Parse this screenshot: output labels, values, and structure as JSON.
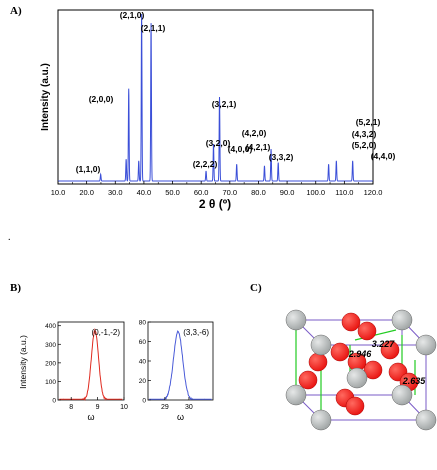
{
  "labels": {
    "a": "A)",
    "b": "B)",
    "c": "C)"
  },
  "stray_mark": ".",
  "chart_data": [
    {
      "type": "line",
      "panel": "A",
      "xlabel": "2 θ (º)",
      "ylabel": "Intensity (a.u.)",
      "xlim": [
        10.0,
        120.0
      ],
      "x_ticks": [
        "10.0",
        "20.0",
        "30.0",
        "40.0",
        "50.0",
        "60.0",
        "70.0",
        "80.0",
        "90.0",
        "100.0",
        "110.0",
        "120.0"
      ],
      "series": [
        {
          "peaks": [
            {
              "x": 24.9,
              "y": 4
            },
            {
              "x": 33.8,
              "y": 13
            },
            {
              "x": 34.7,
              "y": 55
            },
            {
              "x": 38.2,
              "y": 12
            },
            {
              "x": 39.2,
              "y": 100
            },
            {
              "x": 42.5,
              "y": 94
            },
            {
              "x": 61.7,
              "y": 6
            },
            {
              "x": 64.3,
              "y": 22
            },
            {
              "x": 66.4,
              "y": 50
            },
            {
              "x": 72.4,
              "y": 10
            },
            {
              "x": 82.1,
              "y": 9
            },
            {
              "x": 84.4,
              "y": 19
            },
            {
              "x": 86.9,
              "y": 11
            },
            {
              "x": 104.5,
              "y": 10
            },
            {
              "x": 107.2,
              "y": 12
            },
            {
              "x": 112.9,
              "y": 12
            }
          ]
        }
      ],
      "annotations": [
        {
          "text": "(1,1,0)",
          "x": 24.9
        },
        {
          "text": "(2,0,0)",
          "x": 34.7
        },
        {
          "text": "(2,1,0)",
          "x": 39.2
        },
        {
          "text": "(2,1,1)",
          "x": 42.5
        },
        {
          "text": "(2,2,2)",
          "x": 61.7
        },
        {
          "text": "(3,2,0)",
          "x": 64.3
        },
        {
          "text": "(3,2,1)",
          "x": 66.4
        },
        {
          "text": "(4,0,0)",
          "x": 72.4
        },
        {
          "text": "(4,2,0)",
          "x": 82.1
        },
        {
          "text": "(4,2,1)",
          "x": 84.4
        },
        {
          "text": "(3,3,2)",
          "x": 86.9
        },
        {
          "text": "(4,3,2)",
          "x": 104.5
        },
        {
          "text": "(5,2,0)",
          "x": 104.5
        },
        {
          "text": "(5,2,1)",
          "x": 107.2
        },
        {
          "text": "(4,4,0)",
          "x": 112.9
        }
      ],
      "color": "#3b4fd8"
    },
    {
      "type": "line",
      "panel": "B-left",
      "ylabel": "Intensity (a.u.)",
      "xlabel": "ω",
      "xlim": [
        7.5,
        10.0
      ],
      "ylim": [
        0,
        420
      ],
      "x_ticks": [
        "8",
        "9",
        "10"
      ],
      "y_ticks": [
        "0",
        "100",
        "200",
        "300",
        "400"
      ],
      "legend": "(0,-1,-2)",
      "series": [
        {
          "peak_center": 8.9,
          "peak_height": 375,
          "fwhm": 0.32
        }
      ],
      "color": "#e02a1f"
    },
    {
      "type": "line",
      "panel": "B-right",
      "xlabel": "ω",
      "xlim": [
        28.3,
        31.0
      ],
      "ylim": [
        0,
        80
      ],
      "x_ticks": [
        "29",
        "30"
      ],
      "y_ticks": [
        "0",
        "20",
        "40",
        "60",
        "80"
      ],
      "legend": "(3,3,-6)",
      "series": [
        {
          "peak_center": 29.55,
          "peak_height": 70,
          "fwhm": 0.45
        }
      ],
      "color": "#4a5bd8"
    }
  ],
  "structure": {
    "distances": [
      "3.227",
      "2.946",
      "2.635"
    ],
    "atom_colors": {
      "metal": "#9ea3a3",
      "oxygen": "#e8120f"
    },
    "bond_color": "#22cc22",
    "cell_color": "#7a5bc7"
  }
}
